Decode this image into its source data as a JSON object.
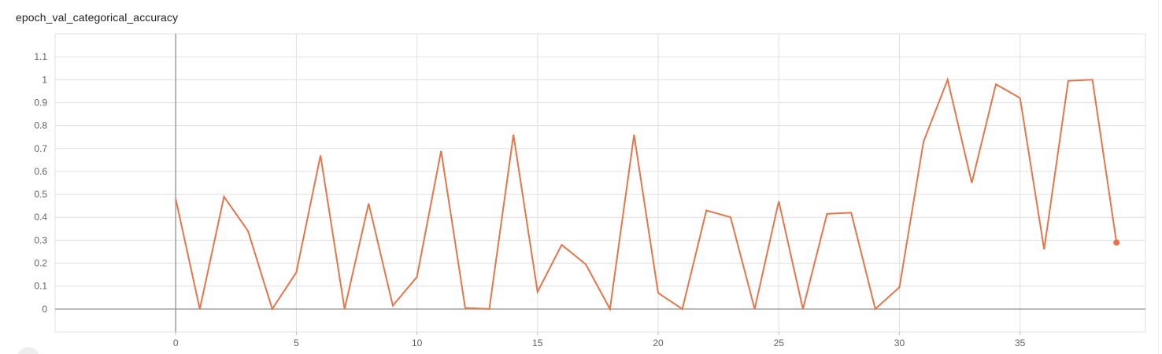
{
  "chart_data": {
    "type": "line",
    "title": "epoch_val_categorical_accuracy",
    "xlabel": "",
    "ylabel": "",
    "x_ticks": [
      0,
      5,
      10,
      15,
      20,
      25,
      30,
      35
    ],
    "y_ticks": [
      0,
      0.1,
      0.2,
      0.3,
      0.4,
      0.5,
      0.6,
      0.7,
      0.8,
      0.9,
      1,
      1.1
    ],
    "x_tick_labels": [
      "0",
      "5",
      "10",
      "15",
      "20",
      "25",
      "30",
      "35"
    ],
    "y_tick_labels": [
      "0",
      "0.1",
      "0.2",
      "0.3",
      "0.4",
      "0.5",
      "0.6",
      "0.7",
      "0.8",
      "0.9",
      "1",
      "1.1"
    ],
    "xlim": [
      -5,
      40.2
    ],
    "ylim": [
      -0.1,
      1.2
    ],
    "grid": true,
    "legend": "none",
    "series": [
      {
        "color": "#e8754a",
        "x": [
          0,
          1,
          2,
          3,
          4,
          5,
          6,
          7,
          8,
          9,
          10,
          11,
          12,
          13,
          14,
          15,
          16,
          17,
          18,
          19,
          20,
          21,
          22,
          23,
          24,
          25,
          26,
          27,
          28,
          29,
          30,
          31,
          32,
          33,
          34,
          35,
          36,
          37,
          38,
          39
        ],
        "y": [
          0.48,
          0.0,
          0.49,
          0.34,
          0.0,
          0.16,
          0.67,
          0.0,
          0.46,
          0.015,
          0.14,
          0.69,
          0.005,
          0.0,
          0.76,
          0.075,
          0.28,
          0.195,
          0.0,
          0.76,
          0.07,
          0.0,
          0.43,
          0.4,
          0.0,
          0.47,
          0.0,
          0.415,
          0.42,
          0.0,
          0.095,
          0.73,
          1.0,
          0.55,
          0.98,
          0.92,
          0.26,
          0.995,
          1.0,
          0.29
        ]
      }
    ]
  }
}
